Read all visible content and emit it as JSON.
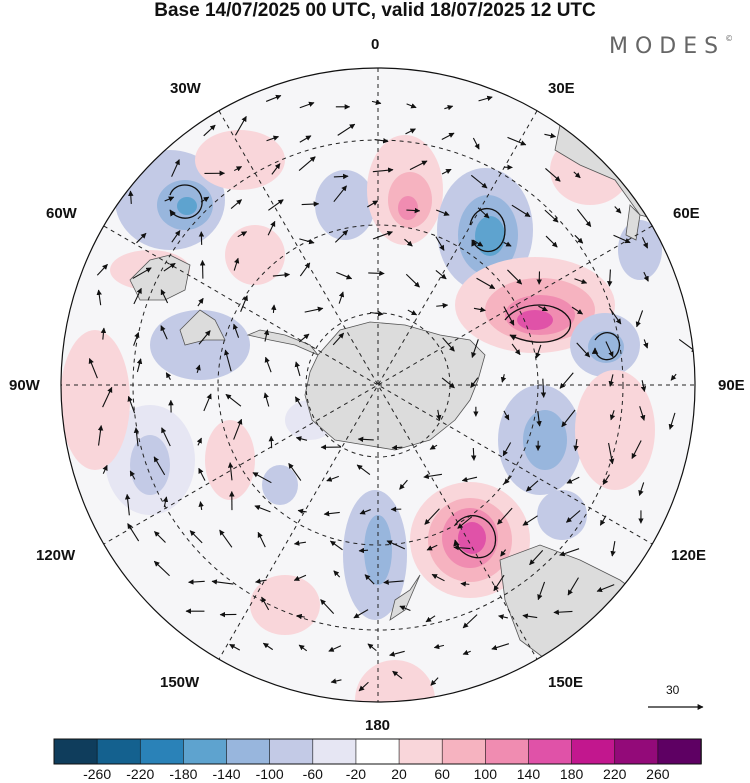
{
  "title": "Base 14/07/2025 00 UTC, valid 18/07/2025 12 UTC",
  "brand": "MODES",
  "brand_mark": "©",
  "longitude_labels": {
    "lon_0": "0",
    "lon_30e": "30E",
    "lon_60e": "60E",
    "lon_90e": "90E",
    "lon_120e": "120E",
    "lon_150e": "150E",
    "lon_180": "180",
    "lon_150w": "150W",
    "lon_120w": "120W",
    "lon_90w": "90W",
    "lon_60w": "60W",
    "lon_30w": "30W"
  },
  "reference_vector": {
    "label": "30"
  },
  "colorbar": {
    "tick_labels": [
      "-260",
      "-220",
      "-180",
      "-140",
      "-100",
      "-60",
      "-20",
      "20",
      "60",
      "100",
      "140",
      "180",
      "220",
      "260"
    ],
    "colors": [
      "#0f3d5c",
      "#14618f",
      "#2a82b8",
      "#5ea3cf",
      "#98b6dd",
      "#c3cae6",
      "#e6e6f3",
      "#ffffff",
      "#f9d6da",
      "#f6b3c0",
      "#f08cb1",
      "#e052a8",
      "#c2178e",
      "#930a79",
      "#5e0063"
    ]
  },
  "projection": "south-polar-stereographic",
  "features": {
    "continent": "Antarctica",
    "landmasses": [
      "South America",
      "Africa",
      "Australia",
      "New Zealand",
      "Madagascar"
    ]
  }
}
